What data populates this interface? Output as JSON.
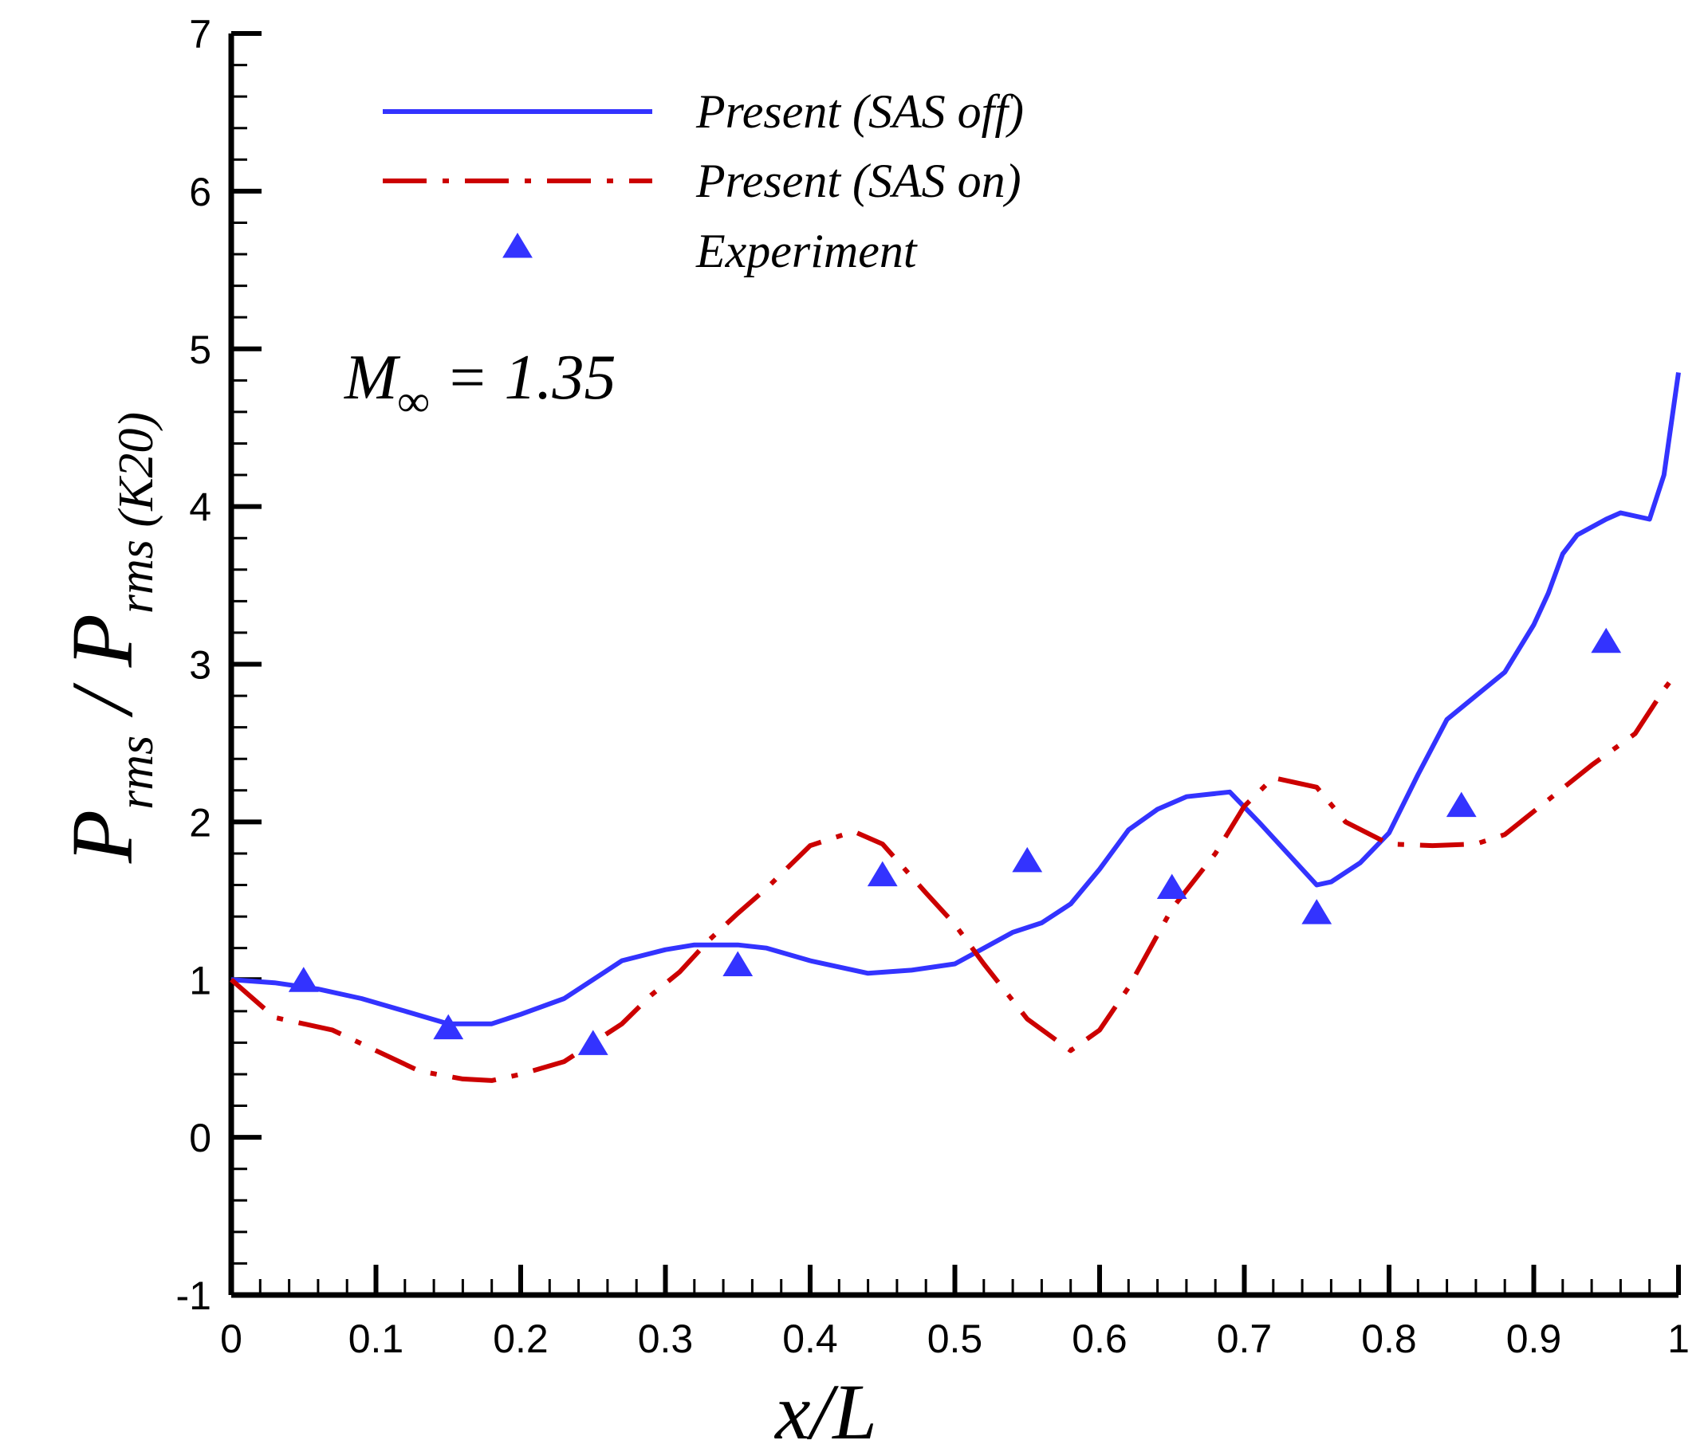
{
  "chart_data": {
    "type": "line",
    "xlabel": "x/L",
    "ylabel": {
      "numerator": "P",
      "numerator_sub": "rms",
      "separator": " / ",
      "denominator": "P",
      "denominator_sub": "rms (K20)"
    },
    "annotation": {
      "symbol": "M",
      "subscript": "∞",
      "rest": " = 1.35"
    },
    "xlim": [
      0,
      1
    ],
    "ylim": [
      -1,
      7
    ],
    "x_ticks": [
      0,
      0.1,
      0.2,
      0.3,
      0.4,
      0.5,
      0.6,
      0.7,
      0.8,
      0.9,
      1
    ],
    "x_tick_labels": [
      "0",
      "0.1",
      "0.2",
      "0.3",
      "0.4",
      "0.5",
      "0.6",
      "0.7",
      "0.8",
      "0.9",
      "1"
    ],
    "y_ticks": [
      -1,
      0,
      1,
      2,
      3,
      4,
      5,
      6,
      7
    ],
    "y_tick_labels": [
      "-1",
      "0",
      "1",
      "2",
      "3",
      "4",
      "5",
      "6",
      "7"
    ],
    "legend_position": "top-left",
    "series": [
      {
        "name": "Present (SAS off)",
        "kind": "line",
        "style": "solid",
        "color": "#3333ff",
        "points": [
          [
            0.0,
            1.0
          ],
          [
            0.03,
            0.98
          ],
          [
            0.06,
            0.94
          ],
          [
            0.09,
            0.88
          ],
          [
            0.12,
            0.8
          ],
          [
            0.15,
            0.72
          ],
          [
            0.18,
            0.72
          ],
          [
            0.2,
            0.78
          ],
          [
            0.23,
            0.88
          ],
          [
            0.25,
            1.0
          ],
          [
            0.27,
            1.12
          ],
          [
            0.3,
            1.19
          ],
          [
            0.32,
            1.22
          ],
          [
            0.35,
            1.22
          ],
          [
            0.37,
            1.2
          ],
          [
            0.4,
            1.12
          ],
          [
            0.42,
            1.08
          ],
          [
            0.44,
            1.04
          ],
          [
            0.47,
            1.06
          ],
          [
            0.5,
            1.1
          ],
          [
            0.52,
            1.2
          ],
          [
            0.54,
            1.3
          ],
          [
            0.56,
            1.36
          ],
          [
            0.58,
            1.48
          ],
          [
            0.6,
            1.7
          ],
          [
            0.62,
            1.95
          ],
          [
            0.64,
            2.08
          ],
          [
            0.66,
            2.16
          ],
          [
            0.69,
            2.19
          ],
          [
            0.71,
            2.0
          ],
          [
            0.73,
            1.8
          ],
          [
            0.75,
            1.6
          ],
          [
            0.76,
            1.62
          ],
          [
            0.78,
            1.74
          ],
          [
            0.8,
            1.93
          ],
          [
            0.82,
            2.3
          ],
          [
            0.84,
            2.65
          ],
          [
            0.86,
            2.8
          ],
          [
            0.88,
            2.95
          ],
          [
            0.9,
            3.25
          ],
          [
            0.91,
            3.45
          ],
          [
            0.92,
            3.7
          ],
          [
            0.93,
            3.82
          ],
          [
            0.95,
            3.92
          ],
          [
            0.96,
            3.96
          ],
          [
            0.98,
            3.92
          ],
          [
            0.99,
            4.2
          ],
          [
            1.0,
            4.85
          ]
        ]
      },
      {
        "name": "Present (SAS on)",
        "kind": "line",
        "style": "dashdot",
        "color": "#cc0000",
        "points": [
          [
            0.0,
            1.0
          ],
          [
            0.03,
            0.76
          ],
          [
            0.07,
            0.68
          ],
          [
            0.1,
            0.55
          ],
          [
            0.13,
            0.42
          ],
          [
            0.16,
            0.37
          ],
          [
            0.18,
            0.36
          ],
          [
            0.2,
            0.4
          ],
          [
            0.23,
            0.48
          ],
          [
            0.25,
            0.6
          ],
          [
            0.27,
            0.72
          ],
          [
            0.29,
            0.9
          ],
          [
            0.31,
            1.05
          ],
          [
            0.33,
            1.25
          ],
          [
            0.35,
            1.42
          ],
          [
            0.37,
            1.58
          ],
          [
            0.4,
            1.85
          ],
          [
            0.43,
            1.94
          ],
          [
            0.45,
            1.86
          ],
          [
            0.48,
            1.55
          ],
          [
            0.5,
            1.35
          ],
          [
            0.52,
            1.1
          ],
          [
            0.55,
            0.75
          ],
          [
            0.58,
            0.55
          ],
          [
            0.6,
            0.68
          ],
          [
            0.62,
            0.95
          ],
          [
            0.65,
            1.45
          ],
          [
            0.68,
            1.8
          ],
          [
            0.7,
            2.1
          ],
          [
            0.72,
            2.28
          ],
          [
            0.75,
            2.22
          ],
          [
            0.77,
            2.0
          ],
          [
            0.8,
            1.86
          ],
          [
            0.83,
            1.85
          ],
          [
            0.86,
            1.86
          ],
          [
            0.88,
            1.92
          ],
          [
            0.91,
            2.14
          ],
          [
            0.94,
            2.36
          ],
          [
            0.97,
            2.56
          ],
          [
            0.99,
            2.84
          ],
          [
            1.0,
            2.96
          ]
        ]
      },
      {
        "name": "Experiment",
        "kind": "scatter",
        "marker": "triangle",
        "color": "#3333ff",
        "points": [
          [
            0.05,
            0.99
          ],
          [
            0.15,
            0.69
          ],
          [
            0.25,
            0.59
          ],
          [
            0.35,
            1.09
          ],
          [
            0.45,
            1.66
          ],
          [
            0.55,
            1.75
          ],
          [
            0.65,
            1.58
          ],
          [
            0.75,
            1.42
          ],
          [
            0.85,
            2.1
          ],
          [
            0.95,
            3.14
          ]
        ]
      }
    ]
  }
}
